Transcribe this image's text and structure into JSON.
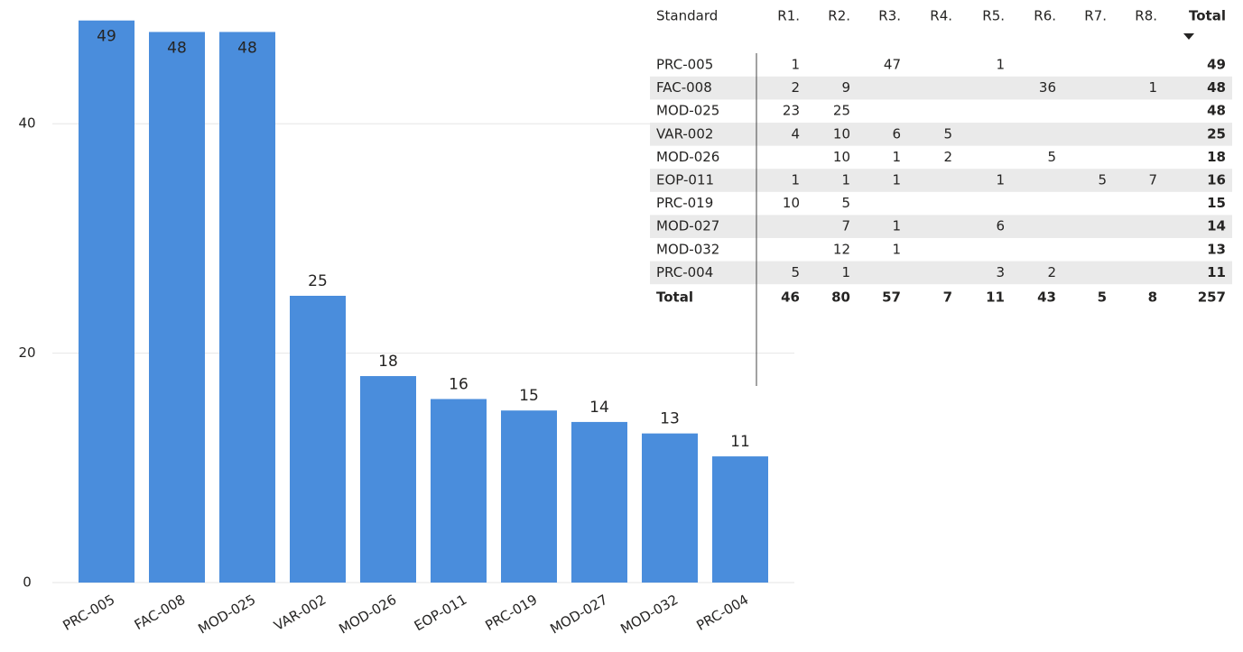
{
  "chart_data": {
    "type": "bar",
    "categories": [
      "PRC-005",
      "FAC-008",
      "MOD-025",
      "VAR-002",
      "MOD-026",
      "EOP-011",
      "PRC-019",
      "MOD-027",
      "MOD-032",
      "PRC-004"
    ],
    "values": [
      49,
      48,
      48,
      25,
      18,
      16,
      15,
      14,
      13,
      11
    ],
    "color": "#4a8ddc",
    "ylim": [
      0,
      50
    ],
    "yticks": [
      0,
      20,
      40
    ],
    "grid": true
  },
  "table": {
    "columns": [
      "Standard",
      "R1.",
      "R2.",
      "R3.",
      "R4.",
      "R5.",
      "R6.",
      "R7.",
      "R8.",
      "Total"
    ],
    "rows": [
      {
        "label": "PRC-005",
        "values": [
          1,
          null,
          47,
          null,
          1,
          null,
          null,
          null,
          49
        ]
      },
      {
        "label": "FAC-008",
        "values": [
          2,
          9,
          null,
          null,
          null,
          36,
          null,
          1,
          48
        ]
      },
      {
        "label": "MOD-025",
        "values": [
          23,
          25,
          null,
          null,
          null,
          null,
          null,
          null,
          48
        ]
      },
      {
        "label": "VAR-002",
        "values": [
          4,
          10,
          6,
          5,
          null,
          null,
          null,
          null,
          25
        ]
      },
      {
        "label": "MOD-026",
        "values": [
          null,
          10,
          1,
          2,
          null,
          5,
          null,
          null,
          18
        ]
      },
      {
        "label": "EOP-011",
        "values": [
          1,
          1,
          1,
          null,
          1,
          null,
          5,
          7,
          16
        ]
      },
      {
        "label": "PRC-019",
        "values": [
          10,
          5,
          null,
          null,
          null,
          null,
          null,
          null,
          15
        ]
      },
      {
        "label": "MOD-027",
        "values": [
          null,
          7,
          1,
          null,
          6,
          null,
          null,
          null,
          14
        ]
      },
      {
        "label": "MOD-032",
        "values": [
          null,
          12,
          1,
          null,
          null,
          null,
          null,
          null,
          13
        ]
      },
      {
        "label": "PRC-004",
        "values": [
          5,
          1,
          null,
          null,
          3,
          2,
          null,
          null,
          11
        ]
      }
    ],
    "total": {
      "label": "Total",
      "values": [
        46,
        80,
        57,
        7,
        11,
        43,
        5,
        8,
        257
      ]
    }
  }
}
